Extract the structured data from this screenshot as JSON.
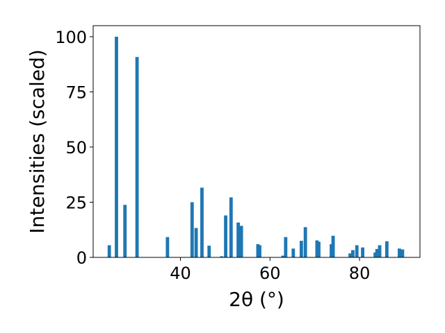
{
  "chart_data": {
    "type": "bar",
    "xlabel": "2θ (°)",
    "ylabel": "Intensities (scaled)",
    "xlim": [
      20.5,
      93.5
    ],
    "ylim": [
      0,
      105
    ],
    "xticks": [
      40,
      60,
      80
    ],
    "yticks": [
      0,
      25,
      50,
      75,
      100
    ],
    "bar_color": "#1f77b4",
    "bar_width_deg": 0.75,
    "grid": false,
    "x": [
      24.1,
      25.7,
      27.6,
      30.3,
      37.1,
      42.6,
      43.5,
      44.8,
      46.4,
      49.2,
      50.1,
      51.3,
      52.9,
      53.6,
      57.3,
      57.7,
      62.9,
      63.5,
      65.2,
      67.0,
      67.9,
      70.5,
      70.9,
      73.7,
      74.1,
      77.9,
      78.5,
      79.4,
      80.7,
      83.5,
      83.9,
      84.5,
      86.1,
      88.9,
      89.6
    ],
    "values": [
      5.5,
      100,
      23.8,
      90.8,
      9.2,
      25.0,
      13.3,
      31.6,
      5.3,
      0.5,
      19.0,
      27.2,
      15.8,
      14.3,
      6.0,
      5.5,
      0.8,
      9.2,
      4.0,
      7.5,
      13.7,
      7.7,
      7.1,
      6.0,
      9.8,
      1.8,
      3.3,
      5.5,
      4.5,
      2.2,
      3.8,
      5.5,
      7.3,
      4.0,
      3.6
    ]
  }
}
